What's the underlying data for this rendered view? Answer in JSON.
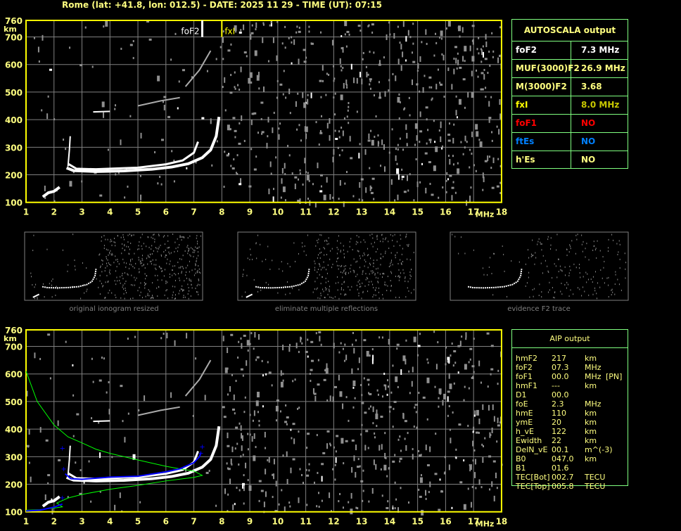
{
  "header": {
    "title": "Rome (lat: +41.8, lon: 012.5) - DATE: 2025 11 29 - TIME (UT): 07:15"
  },
  "axes": {
    "y_unit": "km",
    "x_unit": "MHz",
    "y_ticks": [
      "760",
      "700",
      "600",
      "500",
      "400",
      "300",
      "200",
      "100"
    ],
    "x_ticks": [
      "1",
      "2",
      "3",
      "4",
      "5",
      "6",
      "7",
      "8",
      "9",
      "10",
      "11",
      "12",
      "13",
      "14",
      "15",
      "16",
      "17",
      "18"
    ],
    "y_range_km": [
      100,
      760
    ],
    "x_range_mhz": [
      1,
      18
    ]
  },
  "top_plot": {
    "markers": [
      {
        "label": "foF2",
        "freq_mhz": 7.3,
        "color": "#ffffff"
      },
      {
        "label": "fxI",
        "freq_mhz": 8.0,
        "color": "#ffff00"
      }
    ]
  },
  "autoscala": {
    "title": "AUTOSCALA output",
    "rows": [
      {
        "label": "foF2",
        "value": "7.3 MHz",
        "label_color": "#ffffff",
        "value_color": "#ffffff"
      },
      {
        "label": "MUF(3000)F2",
        "value": "26.9 MHz",
        "label_color": "#ffff80",
        "value_color": "#ffff80"
      },
      {
        "label": "M(3000)F2",
        "value": "3.68",
        "label_color": "#ffff80",
        "value_color": "#ffff80"
      },
      {
        "label": "fxI",
        "value": "8.0 MHz",
        "label_color": "#ffff00",
        "value_color": "#c8c800"
      },
      {
        "label": "foF1",
        "value": "NO",
        "label_color": "#ff0000",
        "value_color": "#ff0000"
      },
      {
        "label": "ftEs",
        "value": "NO",
        "label_color": "#0080ff",
        "value_color": "#0080ff"
      },
      {
        "label": "h'Es",
        "value": "NO",
        "label_color": "#ffff80",
        "value_color": "#ffff80"
      }
    ]
  },
  "thumbnails": [
    {
      "caption": "original ionogram resized"
    },
    {
      "caption": "eliminate multiple reflections"
    },
    {
      "caption": "evidence F2 trace"
    }
  ],
  "aip": {
    "title": "AIP output",
    "rows": [
      {
        "name": "hmF2",
        "value": "217",
        "unit": "km",
        "extra": ""
      },
      {
        "name": "foF2",
        "value": "07.3",
        "unit": "MHz",
        "extra": ""
      },
      {
        "name": "foF1",
        "value": "00.0",
        "unit": "MHz",
        "extra": "[PN]"
      },
      {
        "name": "hmF1",
        "value": "---",
        "unit": "km",
        "extra": ""
      },
      {
        "name": "D1",
        "value": "00.0",
        "unit": "",
        "extra": ""
      },
      {
        "name": "foE",
        "value": "2.3",
        "unit": "MHz",
        "extra": ""
      },
      {
        "name": "hmE",
        "value": "110",
        "unit": "km",
        "extra": ""
      },
      {
        "name": "ymE",
        "value": "20",
        "unit": "km",
        "extra": ""
      },
      {
        "name": "h_vE",
        "value": "122",
        "unit": "km",
        "extra": ""
      },
      {
        "name": "Ewidth",
        "value": "22",
        "unit": "km",
        "extra": ""
      },
      {
        "name": "DelN_vE",
        "value": "00.1",
        "unit": "m^(-3)",
        "extra": ""
      },
      {
        "name": "B0",
        "value": "047.0",
        "unit": "km",
        "extra": ""
      },
      {
        "name": "B1",
        "value": "01.6",
        "unit": "",
        "extra": ""
      },
      {
        "name": "TEC[Bot]",
        "value": "002.7",
        "unit": "TECU",
        "extra": ""
      },
      {
        "name": "TEC[Top]",
        "value": "005.8",
        "unit": "TECU",
        "extra": ""
      }
    ]
  },
  "colors": {
    "axis": "#ffff00",
    "grid": "#808080",
    "trace": "#ffffff",
    "profile": "#00ff00",
    "fit": "#0000ff",
    "table_border": "#80ff80"
  }
}
